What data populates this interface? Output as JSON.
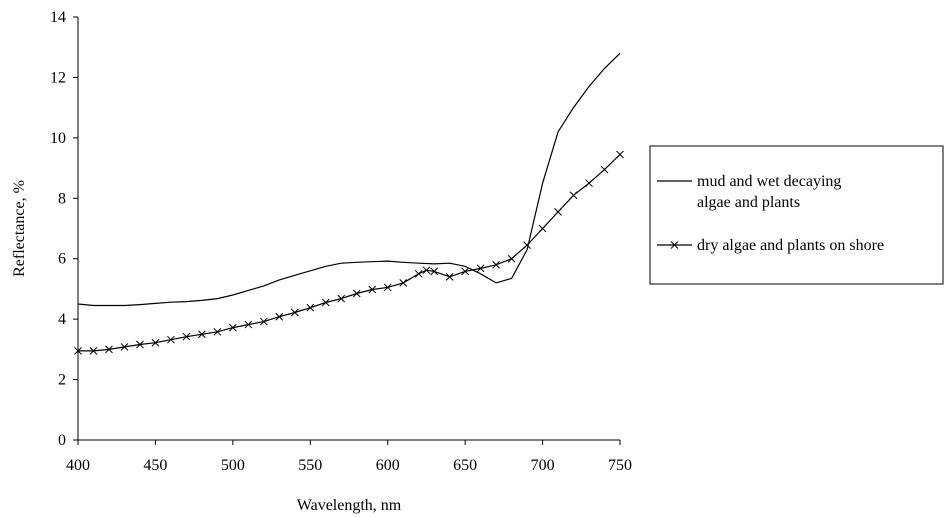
{
  "chart_data": {
    "type": "line",
    "xlabel": "Wavelength, nm",
    "ylabel": "Reflectance, %",
    "xlim": [
      400,
      750
    ],
    "ylim": [
      0,
      14
    ],
    "x_ticks": [
      400,
      450,
      500,
      550,
      600,
      650,
      700,
      750
    ],
    "y_ticks": [
      0,
      2,
      4,
      6,
      8,
      10,
      12,
      14
    ],
    "grid": false,
    "legend_position": "right",
    "series": [
      {
        "name": "mud and wet decaying algae and plants",
        "marker": "none",
        "color": "#000000",
        "points": [
          [
            400,
            4.5
          ],
          [
            410,
            4.45
          ],
          [
            420,
            4.45
          ],
          [
            430,
            4.45
          ],
          [
            440,
            4.48
          ],
          [
            450,
            4.52
          ],
          [
            460,
            4.56
          ],
          [
            470,
            4.58
          ],
          [
            480,
            4.62
          ],
          [
            490,
            4.68
          ],
          [
            500,
            4.8
          ],
          [
            510,
            4.95
          ],
          [
            520,
            5.1
          ],
          [
            530,
            5.3
          ],
          [
            540,
            5.45
          ],
          [
            550,
            5.6
          ],
          [
            560,
            5.75
          ],
          [
            570,
            5.85
          ],
          [
            580,
            5.88
          ],
          [
            590,
            5.9
          ],
          [
            600,
            5.92
          ],
          [
            610,
            5.88
          ],
          [
            620,
            5.85
          ],
          [
            630,
            5.83
          ],
          [
            640,
            5.85
          ],
          [
            650,
            5.75
          ],
          [
            660,
            5.5
          ],
          [
            670,
            5.2
          ],
          [
            680,
            5.35
          ],
          [
            690,
            6.3
          ],
          [
            700,
            8.5
          ],
          [
            710,
            10.2
          ],
          [
            720,
            11.0
          ],
          [
            730,
            11.7
          ],
          [
            740,
            12.3
          ],
          [
            750,
            12.8
          ]
        ]
      },
      {
        "name": "dry algae and plants on shore",
        "marker": "x",
        "color": "#000000",
        "points": [
          [
            400,
            2.95
          ],
          [
            410,
            2.95
          ],
          [
            420,
            3.0
          ],
          [
            430,
            3.08
          ],
          [
            440,
            3.16
          ],
          [
            450,
            3.22
          ],
          [
            460,
            3.32
          ],
          [
            470,
            3.42
          ],
          [
            480,
            3.5
          ],
          [
            490,
            3.58
          ],
          [
            500,
            3.72
          ],
          [
            510,
            3.82
          ],
          [
            520,
            3.92
          ],
          [
            530,
            4.08
          ],
          [
            540,
            4.22
          ],
          [
            550,
            4.38
          ],
          [
            560,
            4.55
          ],
          [
            570,
            4.68
          ],
          [
            580,
            4.85
          ],
          [
            590,
            4.98
          ],
          [
            600,
            5.05
          ],
          [
            610,
            5.2
          ],
          [
            620,
            5.5
          ],
          [
            625,
            5.62
          ],
          [
            630,
            5.58
          ],
          [
            640,
            5.4
          ],
          [
            650,
            5.58
          ],
          [
            660,
            5.68
          ],
          [
            670,
            5.8
          ],
          [
            680,
            6.0
          ],
          [
            690,
            6.45
          ],
          [
            700,
            7.0
          ],
          [
            710,
            7.55
          ],
          [
            720,
            8.1
          ],
          [
            730,
            8.5
          ],
          [
            740,
            8.95
          ],
          [
            750,
            9.45
          ]
        ]
      }
    ]
  }
}
